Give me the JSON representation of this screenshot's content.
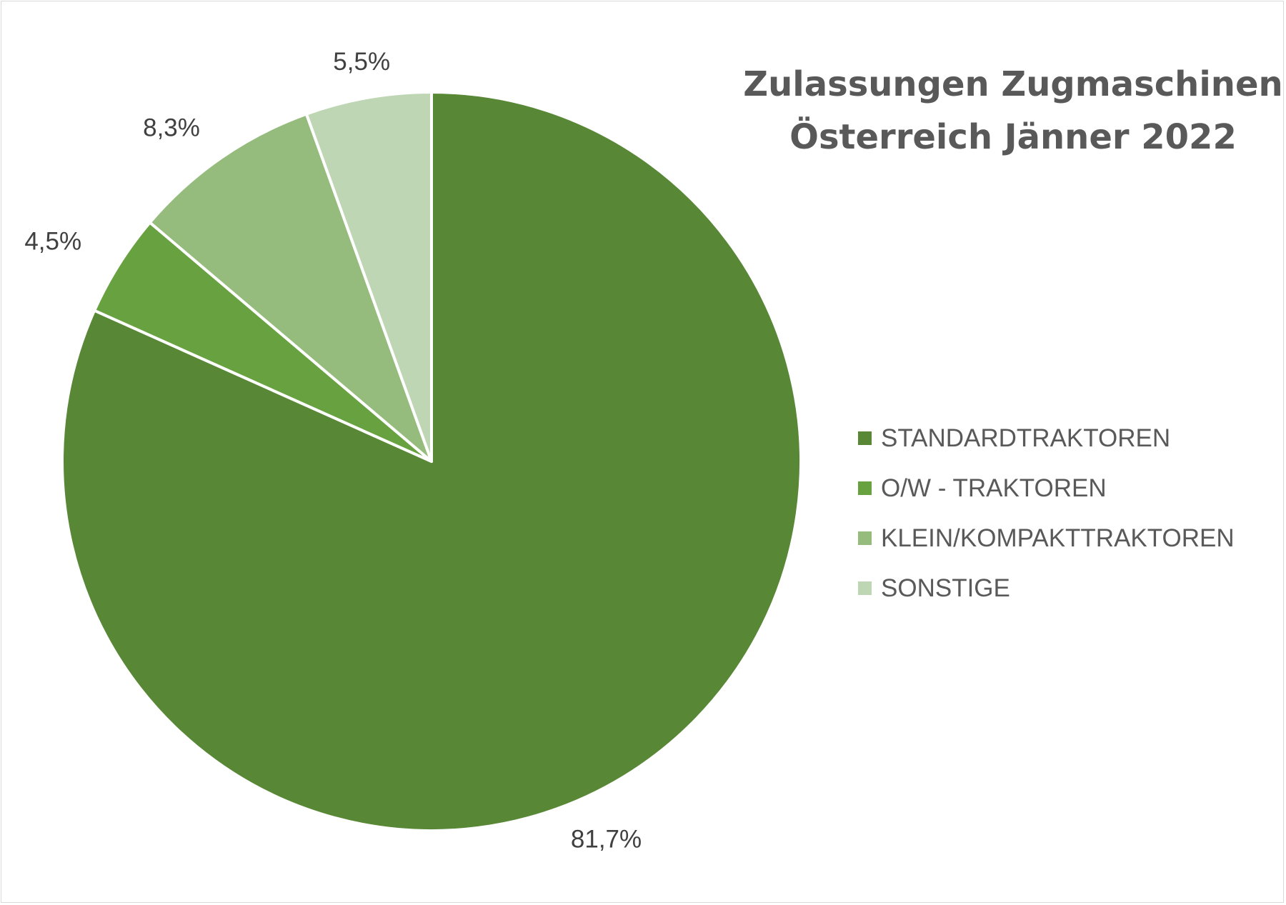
{
  "chart_data": {
    "type": "pie",
    "title_lines": [
      "Zulassungen Zugmaschinen",
      "Österreich Jänner 2022"
    ],
    "categories": [
      "STANDARDTRAKTOREN",
      "O/W - TRAKTOREN",
      "KLEIN/KOMPAKTTRAKTOREN",
      "SONSTIGE"
    ],
    "values": [
      81.7,
      4.5,
      8.3,
      5.5
    ],
    "value_labels": [
      "81,7%",
      "4,5%",
      "8,3%",
      "5,5%"
    ],
    "colors": [
      "#588736",
      "#68a240",
      "#95bc7d",
      "#bfd6b5"
    ],
    "start": "12 o'clock, clockwise",
    "legend_position": "right"
  }
}
